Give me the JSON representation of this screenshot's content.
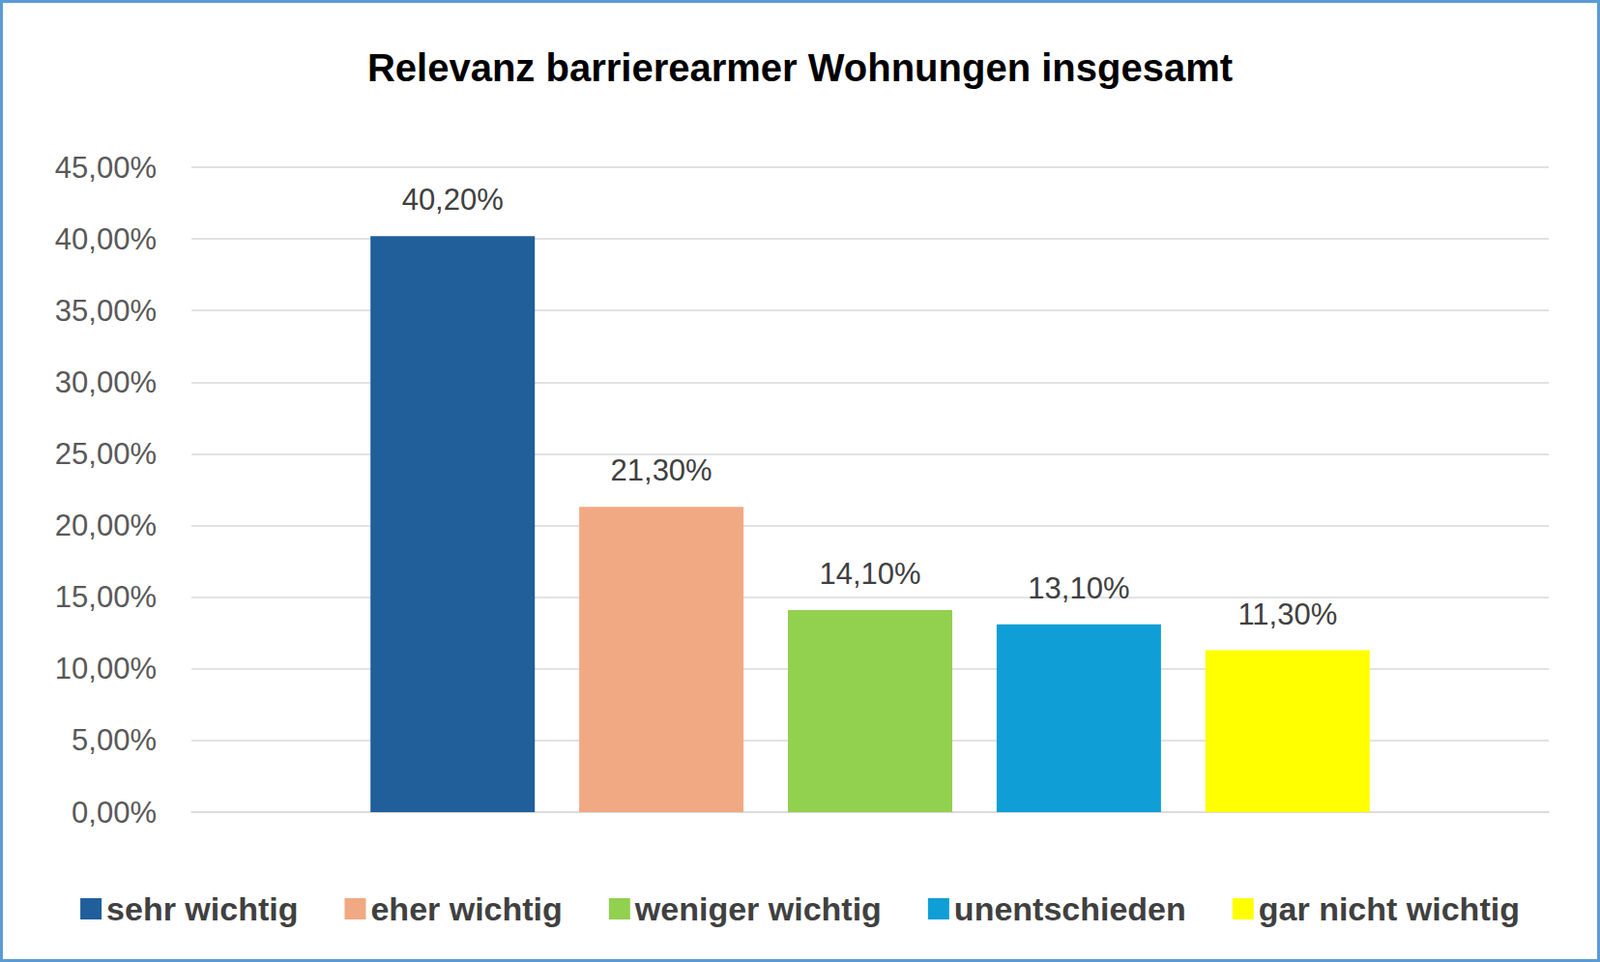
{
  "chart_data": {
    "type": "bar",
    "title": "Relevanz barrierearmer Wohnungen insgesamt",
    "categories": [
      "sehr wichtig",
      "eher wichtig",
      "weniger wichtig",
      "unentschieden",
      "gar nicht wichtig"
    ],
    "values": [
      40.2,
      21.3,
      14.1,
      13.1,
      11.3
    ],
    "value_labels": [
      "40,20%",
      "21,30%",
      "14,10%",
      "13,10%",
      "11,30%"
    ],
    "colors": [
      "#215f9a",
      "#f1a983",
      "#92d050",
      "#0f9ed5",
      "#ffff00"
    ],
    "ylim": [
      0,
      45
    ],
    "yticks": [
      {
        "value": 0,
        "label": "0,00%"
      },
      {
        "value": 5,
        "label": "5,00%"
      },
      {
        "value": 10,
        "label": "10,00%"
      },
      {
        "value": 15,
        "label": "15,00%"
      },
      {
        "value": 20,
        "label": "20,00%"
      },
      {
        "value": 25,
        "label": "25,00%"
      },
      {
        "value": 30,
        "label": "30,00%"
      },
      {
        "value": 35,
        "label": "35,00%"
      },
      {
        "value": 40,
        "label": "40,00%"
      },
      {
        "value": 45,
        "label": "45,00%"
      }
    ],
    "grid": true,
    "legend": "bottom",
    "data_labels": true,
    "tick_labels": "y"
  }
}
